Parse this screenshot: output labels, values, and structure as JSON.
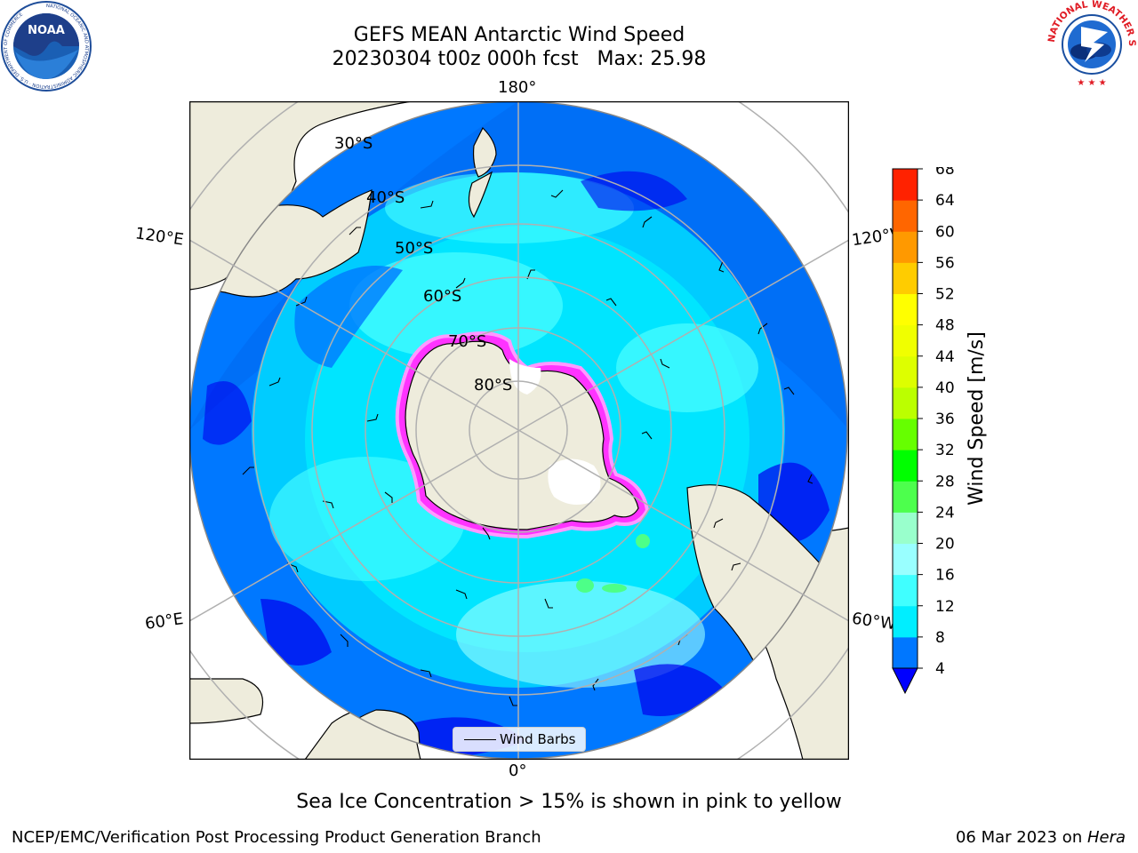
{
  "title": {
    "line1": "GEFS MEAN Antarctic Wind Speed",
    "line2": "20230304 t00z 000h fcst   Max: 25.98"
  },
  "logos": {
    "left": {
      "icon": "noaa-logo",
      "text": "NOAA",
      "ring_text": "NATIONAL OCEANIC AND ATMOSPHERIC ADMINISTRATION · U.S. DEPARTMENT OF COMMERCE"
    },
    "right": {
      "icon": "nws-logo",
      "ring_text": "NATIONAL WEATHER SERVICE"
    }
  },
  "map": {
    "projection": "south-polar-stereographic",
    "lon_labels": {
      "top": "180°",
      "bottom": "0°",
      "left_upper": "120°E",
      "left_lower": "60°E",
      "right_upper": "120°W",
      "right_lower": "60°W"
    },
    "lat_labels": [
      "30°S",
      "40°S",
      "50°S",
      "60°S",
      "70°S",
      "80°S"
    ],
    "legend_label": "Wind Barbs",
    "colors": {
      "land": "#eeecdc",
      "ocean_low": "#0000ee",
      "ocean_mid": "#0078ff",
      "ocean_high": "#00e5ff",
      "ocean_cyan2": "#4dffff",
      "ice": "#ff33ff",
      "grid": "#b0b0b0"
    }
  },
  "colorbar": {
    "label": "Wind Speed [m/s]",
    "ticks": [
      "4",
      "8",
      "12",
      "16",
      "20",
      "24",
      "28",
      "32",
      "36",
      "40",
      "44",
      "48",
      "52",
      "56",
      "60",
      "64",
      "68"
    ],
    "colors": [
      "#0077ff",
      "#00eeff",
      "#40ffff",
      "#99ffff",
      "#99ffcc",
      "#4dff4d",
      "#00ff00",
      "#66ff00",
      "#bbff00",
      "#ddff00",
      "#f0ff00",
      "#ffff00",
      "#ffcc00",
      "#ff9900",
      "#ff6600",
      "#ff2200",
      "#ff0000"
    ],
    "under_color": "#0000ff",
    "extend": "min"
  },
  "footnote": "Sea Ice Concentration > 15% is shown in pink to yellow",
  "footer": {
    "org": "NCEP/EMC/Verification Post Processing Product Generation Branch",
    "date": "06 Mar 2023 on ",
    "machine": "Hera"
  }
}
